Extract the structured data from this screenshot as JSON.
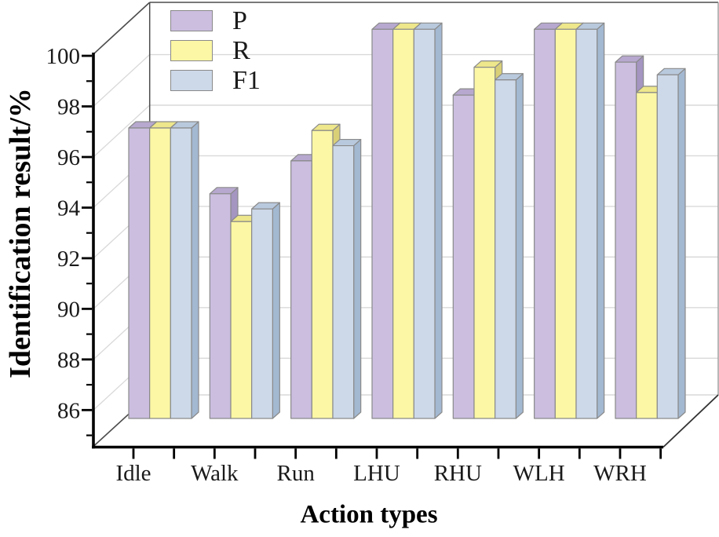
{
  "chart_data": {
    "type": "bar",
    "variant": "3d-oblique",
    "title": "",
    "xlabel": "Action types",
    "ylabel": "Identification result/%",
    "ylim": [
      86,
      100
    ],
    "ytick_interval": 2,
    "yticks": [
      86,
      88,
      90,
      92,
      94,
      96,
      98,
      100
    ],
    "categories": [
      "Idle",
      "Walk",
      "Run",
      "LHU",
      "RHU",
      "WLH",
      "WRH"
    ],
    "series": [
      {
        "name": "P",
        "values": [
          96.0,
          93.4,
          94.7,
          99.9,
          97.3,
          99.9,
          98.6
        ],
        "color": "#CBBEDF",
        "color_top": "#B7A8CF",
        "color_side": "#A495C1"
      },
      {
        "name": "R",
        "values": [
          96.0,
          92.3,
          95.9,
          99.9,
          98.4,
          99.9,
          97.4
        ],
        "color": "#FBF7A4",
        "color_top": "#EEE78B",
        "color_side": "#D9CF77"
      },
      {
        "name": "F1",
        "values": [
          96.0,
          92.8,
          95.3,
          99.9,
          97.9,
          99.9,
          98.1
        ],
        "color": "#CDD9E9",
        "color_top": "#B9C9DD",
        "color_side": "#A3B8D1"
      }
    ],
    "legend_position": "top-left-inside",
    "grid": true
  },
  "colors": {
    "background": "#ffffff",
    "grid": "#d9d9d9",
    "axis": "#000000",
    "frame": "#4d4d4d",
    "wall_edge_light": "#9a9a9a",
    "bar_outline": "#8a8a8a",
    "text": "#1a1a1a"
  }
}
